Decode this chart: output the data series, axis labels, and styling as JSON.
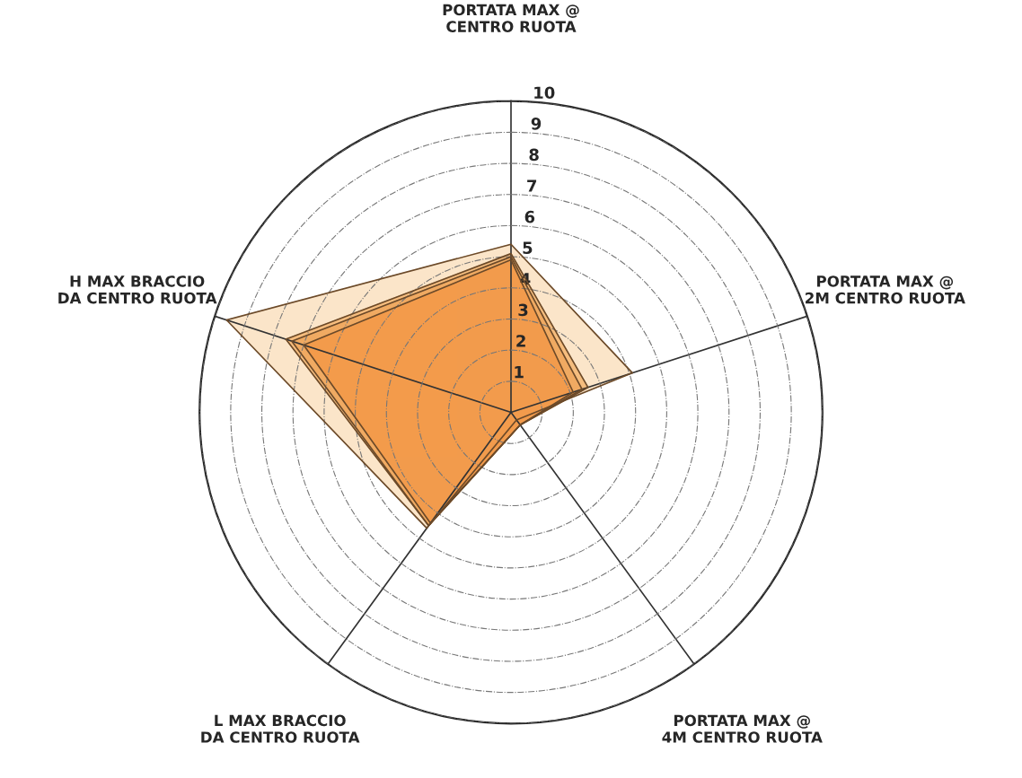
{
  "chart_data": {
    "type": "radar",
    "relative": false,
    "categories": [
      "PORTATA MAX @\nCENTRO RUOTA",
      "PORTATA MAX @\n2M CENTRO RUOTA",
      "PORTATA MAX @\n4M CENTRO RUOTA",
      "L MAX BRACCIO\nDA CENTRO RUOTA",
      "H MAX BRACCIO\nDA CENTRO RUOTA"
    ],
    "ylim": [
      0,
      10
    ],
    "yticks": [
      1,
      2,
      3,
      4,
      5,
      6,
      7,
      8,
      9,
      10
    ],
    "grid": true,
    "legend": false,
    "series": [
      {
        "color": "#fbe3c4",
        "values": [
          5.4,
          4.1,
          0.3,
          4.6,
          9.6
        ]
      },
      {
        "color": "#f5b976",
        "values": [
          5.1,
          2.6,
          0.5,
          4.5,
          7.6
        ]
      },
      {
        "color": "#f0a860",
        "values": [
          5.0,
          2.4,
          0.5,
          4.5,
          7.4
        ]
      },
      {
        "color": "#f39a4a",
        "values": [
          4.9,
          2.1,
          0.5,
          4.4,
          7.0
        ]
      }
    ]
  }
}
